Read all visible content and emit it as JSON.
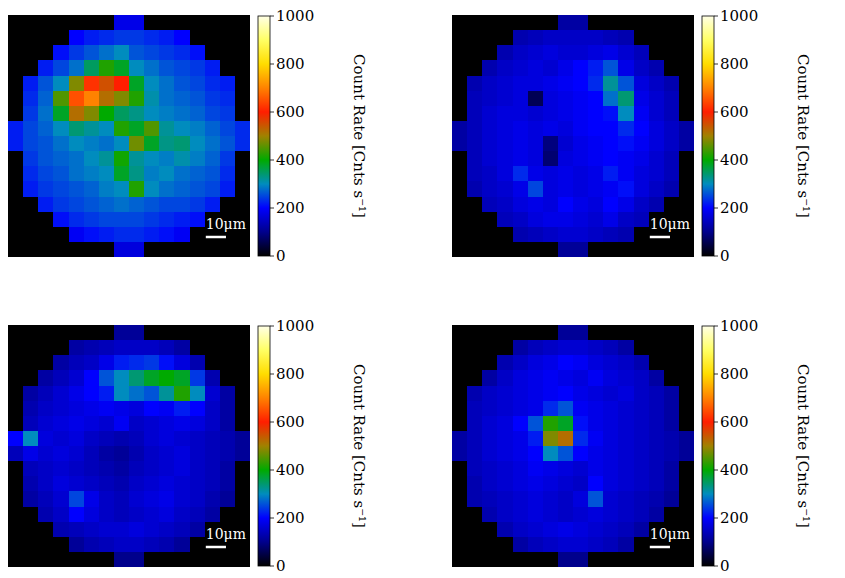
{
  "chart_data": [
    {
      "type": "heatmap",
      "xlim": [
        0,
        120
      ],
      "ylim": [
        0,
        120
      ],
      "tick_labels": false,
      "colorbar_range": [
        0,
        1000
      ],
      "colorbar_ticks": [
        0,
        200,
        400,
        600,
        800,
        1000
      ],
      "colorbar_label": "Count Rate [Cnts s⁻¹]",
      "scale_bar": {
        "value": 10,
        "label": "10μm"
      },
      "cells": [
        [
          0,
          0,
          0,
          0,
          0,
          0,
          0,
          180,
          180,
          0,
          0,
          0,
          0,
          0,
          0,
          0
        ],
        [
          0,
          0,
          0,
          0,
          200,
          220,
          230,
          240,
          240,
          230,
          220,
          200,
          0,
          0,
          0,
          0
        ],
        [
          0,
          0,
          0,
          210,
          240,
          260,
          280,
          300,
          260,
          250,
          240,
          230,
          210,
          0,
          0,
          0
        ],
        [
          0,
          0,
          220,
          250,
          280,
          350,
          420,
          380,
          300,
          280,
          260,
          250,
          240,
          220,
          0,
          0
        ],
        [
          0,
          220,
          260,
          300,
          480,
          620,
          550,
          600,
          380,
          300,
          280,
          260,
          250,
          230,
          220,
          0
        ],
        [
          0,
          230,
          270,
          450,
          650,
          700,
          520,
          480,
          420,
          310,
          280,
          270,
          260,
          240,
          230,
          0
        ],
        [
          0,
          240,
          280,
          380,
          520,
          480,
          400,
          350,
          330,
          300,
          290,
          280,
          270,
          250,
          240,
          0
        ],
        [
          220,
          250,
          270,
          300,
          340,
          320,
          300,
          420,
          380,
          450,
          320,
          300,
          290,
          270,
          250,
          230
        ],
        [
          220,
          250,
          260,
          280,
          300,
          290,
          280,
          300,
          470,
          380,
          330,
          340,
          300,
          280,
          260,
          230
        ],
        [
          0,
          240,
          260,
          270,
          280,
          300,
          320,
          410,
          320,
          300,
          290,
          310,
          290,
          270,
          240,
          0
        ],
        [
          0,
          230,
          250,
          260,
          280,
          290,
          300,
          380,
          330,
          290,
          300,
          280,
          270,
          260,
          230,
          0
        ],
        [
          0,
          220,
          240,
          250,
          260,
          270,
          290,
          300,
          420,
          300,
          280,
          270,
          260,
          250,
          220,
          0
        ],
        [
          0,
          0,
          220,
          240,
          250,
          260,
          270,
          280,
          270,
          260,
          250,
          250,
          240,
          220,
          0,
          0
        ],
        [
          0,
          0,
          0,
          210,
          230,
          240,
          250,
          250,
          250,
          240,
          230,
          220,
          210,
          0,
          0,
          0
        ],
        [
          0,
          0,
          0,
          0,
          190,
          210,
          220,
          230,
          230,
          220,
          210,
          190,
          0,
          0,
          0,
          0
        ],
        [
          0,
          0,
          0,
          0,
          0,
          0,
          0,
          170,
          170,
          0,
          0,
          0,
          0,
          0,
          0,
          0
        ]
      ]
    },
    {
      "type": "heatmap",
      "xlim": [
        0,
        120
      ],
      "ylim": [
        0,
        120
      ],
      "tick_labels": false,
      "colorbar_range": [
        0,
        1000
      ],
      "colorbar_ticks": [
        0,
        200,
        400,
        600,
        800,
        1000
      ],
      "colorbar_label": "Count Rate [Cnts s⁻¹]",
      "scale_bar": {
        "value": 10,
        "label": "10μm"
      },
      "cells": [
        [
          0,
          0,
          0,
          0,
          0,
          0,
          0,
          120,
          120,
          0,
          0,
          0,
          0,
          0,
          0,
          0
        ],
        [
          0,
          0,
          0,
          0,
          130,
          140,
          150,
          150,
          150,
          150,
          140,
          130,
          0,
          0,
          0,
          0
        ],
        [
          0,
          0,
          0,
          130,
          150,
          160,
          170,
          160,
          160,
          170,
          180,
          160,
          140,
          0,
          0,
          0
        ],
        [
          0,
          0,
          130,
          150,
          160,
          170,
          160,
          180,
          200,
          220,
          260,
          180,
          150,
          130,
          0,
          0
        ],
        [
          0,
          130,
          150,
          160,
          170,
          170,
          180,
          190,
          200,
          230,
          320,
          260,
          170,
          150,
          130,
          0
        ],
        [
          0,
          140,
          150,
          160,
          170,
          60,
          170,
          180,
          190,
          200,
          280,
          340,
          180,
          160,
          140,
          0
        ],
        [
          0,
          140,
          160,
          170,
          170,
          160,
          170,
          180,
          190,
          200,
          210,
          300,
          190,
          160,
          140,
          0
        ],
        [
          120,
          140,
          160,
          170,
          180,
          170,
          180,
          170,
          190,
          200,
          200,
          230,
          200,
          170,
          150,
          120
        ],
        [
          120,
          140,
          160,
          170,
          180,
          170,
          90,
          160,
          180,
          190,
          200,
          210,
          190,
          170,
          150,
          120
        ],
        [
          0,
          140,
          160,
          170,
          180,
          170,
          80,
          170,
          180,
          190,
          200,
          190,
          180,
          160,
          140,
          0
        ],
        [
          0,
          140,
          150,
          170,
          230,
          180,
          170,
          180,
          170,
          180,
          220,
          190,
          170,
          160,
          140,
          0
        ],
        [
          0,
          130,
          150,
          160,
          180,
          250,
          170,
          180,
          170,
          180,
          190,
          210,
          170,
          150,
          130,
          0
        ],
        [
          0,
          0,
          140,
          150,
          170,
          180,
          170,
          200,
          180,
          170,
          200,
          180,
          150,
          130,
          0,
          0
        ],
        [
          0,
          0,
          0,
          140,
          150,
          170,
          180,
          180,
          170,
          160,
          180,
          150,
          140,
          0,
          0,
          0
        ],
        [
          0,
          0,
          0,
          0,
          130,
          140,
          150,
          160,
          160,
          150,
          140,
          130,
          0,
          0,
          0,
          0
        ],
        [
          0,
          0,
          0,
          0,
          0,
          0,
          0,
          110,
          110,
          0,
          0,
          0,
          0,
          0,
          0,
          0
        ]
      ]
    },
    {
      "type": "heatmap",
      "xlim": [
        0,
        120
      ],
      "ylim": [
        0,
        120
      ],
      "tick_labels": false,
      "colorbar_range": [
        0,
        1000
      ],
      "colorbar_ticks": [
        0,
        200,
        400,
        600,
        800,
        1000
      ],
      "colorbar_label": "Count Rate [Cnts s⁻¹]",
      "scale_bar": {
        "value": 10,
        "label": "10μm"
      },
      "cells": [
        [
          0,
          0,
          0,
          0,
          0,
          0,
          0,
          110,
          110,
          0,
          0,
          0,
          0,
          0,
          0,
          0
        ],
        [
          0,
          0,
          0,
          0,
          120,
          130,
          140,
          150,
          150,
          150,
          140,
          120,
          0,
          0,
          0,
          0
        ],
        [
          0,
          0,
          0,
          120,
          140,
          150,
          180,
          220,
          230,
          240,
          210,
          170,
          130,
          0,
          0,
          0
        ],
        [
          0,
          0,
          120,
          140,
          160,
          200,
          260,
          300,
          340,
          380,
          400,
          380,
          240,
          130,
          0,
          0
        ],
        [
          0,
          120,
          140,
          160,
          180,
          200,
          220,
          300,
          280,
          260,
          320,
          420,
          300,
          160,
          120,
          0
        ],
        [
          0,
          130,
          150,
          160,
          170,
          180,
          190,
          180,
          170,
          200,
          190,
          220,
          200,
          150,
          120,
          0
        ],
        [
          0,
          140,
          160,
          170,
          180,
          170,
          160,
          190,
          150,
          160,
          170,
          180,
          170,
          150,
          120,
          0
        ],
        [
          200,
          300,
          170,
          160,
          170,
          150,
          140,
          130,
          140,
          160,
          170,
          160,
          150,
          140,
          130,
          110
        ],
        [
          140,
          180,
          160,
          170,
          160,
          140,
          120,
          110,
          130,
          150,
          160,
          170,
          150,
          140,
          130,
          110
        ],
        [
          0,
          140,
          150,
          160,
          150,
          140,
          130,
          120,
          140,
          150,
          160,
          170,
          150,
          140,
          120,
          0
        ],
        [
          0,
          130,
          150,
          170,
          160,
          150,
          140,
          130,
          150,
          160,
          170,
          160,
          150,
          140,
          120,
          0
        ],
        [
          0,
          120,
          140,
          160,
          250,
          180,
          150,
          140,
          160,
          170,
          180,
          160,
          150,
          130,
          110,
          0
        ],
        [
          0,
          0,
          130,
          150,
          200,
          170,
          150,
          140,
          150,
          160,
          170,
          150,
          140,
          120,
          0,
          0
        ],
        [
          0,
          0,
          0,
          130,
          140,
          150,
          160,
          160,
          170,
          160,
          150,
          140,
          120,
          0,
          0,
          0
        ],
        [
          0,
          0,
          0,
          0,
          110,
          130,
          140,
          150,
          150,
          140,
          130,
          110,
          0,
          0,
          0,
          0
        ],
        [
          0,
          0,
          0,
          0,
          0,
          0,
          0,
          100,
          100,
          0,
          0,
          0,
          0,
          0,
          0,
          0
        ]
      ]
    },
    {
      "type": "heatmap",
      "xlim": [
        0,
        120
      ],
      "ylim": [
        0,
        120
      ],
      "tick_labels": false,
      "colorbar_range": [
        0,
        1000
      ],
      "colorbar_ticks": [
        0,
        200,
        400,
        600,
        800,
        1000
      ],
      "colorbar_label": "Count Rate [Cnts s⁻¹]",
      "scale_bar": {
        "value": 10,
        "label": "10μm"
      },
      "cells": [
        [
          0,
          0,
          0,
          0,
          0,
          0,
          0,
          110,
          110,
          0,
          0,
          0,
          0,
          0,
          0,
          0
        ],
        [
          0,
          0,
          0,
          0,
          120,
          140,
          150,
          160,
          160,
          150,
          140,
          120,
          0,
          0,
          0,
          0
        ],
        [
          0,
          0,
          0,
          130,
          150,
          170,
          180,
          200,
          190,
          170,
          160,
          150,
          130,
          0,
          0,
          0
        ],
        [
          0,
          0,
          120,
          150,
          170,
          180,
          190,
          180,
          170,
          190,
          170,
          160,
          150,
          120,
          0,
          0
        ],
        [
          0,
          130,
          150,
          160,
          170,
          180,
          190,
          200,
          180,
          170,
          160,
          170,
          150,
          140,
          120,
          0
        ],
        [
          0,
          140,
          150,
          160,
          170,
          180,
          230,
          260,
          190,
          180,
          170,
          160,
          150,
          140,
          120,
          0
        ],
        [
          0,
          140,
          160,
          170,
          200,
          260,
          420,
          380,
          210,
          180,
          170,
          160,
          150,
          140,
          120,
          0
        ],
        [
          120,
          140,
          160,
          170,
          180,
          220,
          480,
          520,
          230,
          190,
          170,
          160,
          150,
          140,
          130,
          110
        ],
        [
          120,
          140,
          160,
          170,
          180,
          200,
          300,
          260,
          200,
          180,
          170,
          160,
          150,
          140,
          130,
          110
        ],
        [
          0,
          140,
          150,
          160,
          170,
          190,
          180,
          170,
          160,
          180,
          170,
          160,
          150,
          140,
          120,
          0
        ],
        [
          0,
          130,
          150,
          160,
          170,
          180,
          170,
          160,
          150,
          200,
          170,
          160,
          150,
          140,
          120,
          0
        ],
        [
          0,
          130,
          140,
          150,
          160,
          170,
          160,
          150,
          170,
          260,
          160,
          150,
          140,
          130,
          110,
          0
        ],
        [
          0,
          0,
          130,
          150,
          160,
          170,
          160,
          150,
          160,
          170,
          160,
          150,
          140,
          120,
          0,
          0
        ],
        [
          0,
          0,
          0,
          130,
          150,
          160,
          170,
          180,
          170,
          160,
          150,
          140,
          120,
          0,
          0,
          0
        ],
        [
          0,
          0,
          0,
          0,
          120,
          140,
          150,
          160,
          160,
          150,
          140,
          120,
          0,
          0,
          0,
          0
        ],
        [
          0,
          0,
          0,
          0,
          0,
          0,
          0,
          100,
          100,
          0,
          0,
          0,
          0,
          0,
          0,
          0
        ]
      ]
    }
  ]
}
